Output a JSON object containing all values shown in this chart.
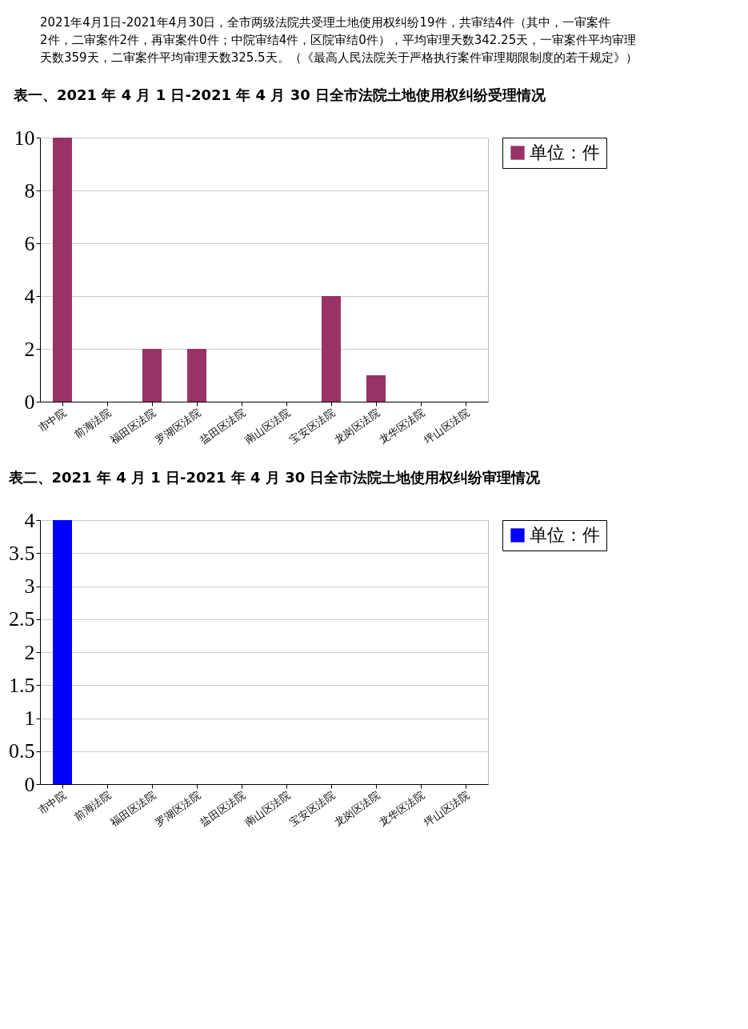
{
  "chart_data": [
    {
      "type": "bar",
      "title": "表一、2021 年 4 月 1 日-2021 年 4 月 30 日全市法院土地使用权纠纷受理情况",
      "annotations": [
        "2021年4月1日-2021年4月30日，全市两级法院共受理土地使用权纠纷19件，共审结4件（其中，一审案件2件，二审案件2件，再审案件0件；中院审结4件，区院审结0件），平均审理天数342.25天，一审案件平均审理天数359天，二审案件平均审理天数325.5天。（《最高人民法院关于严格执行案件审理期限制度的若干规定》）"
      ],
      "categories": [
        "市中院",
        "前海法院",
        "福田区法院",
        "罗湖区法院",
        "盐田区法院",
        "南山区法院",
        "宝安区法院",
        "龙岗区法院",
        "龙华区法院",
        "坪山区法院"
      ],
      "series": [
        {
          "name": "单位：件",
          "color": "#993366",
          "values": [
            10,
            0,
            2,
            2,
            0,
            0,
            4,
            1,
            0,
            0
          ]
        }
      ],
      "ylim": [
        0,
        10
      ],
      "yticks": [
        0,
        2,
        4,
        6,
        8,
        10
      ],
      "grid": "y",
      "legend": "right"
    },
    {
      "type": "bar",
      "title": "表二、2021 年 4 月 1 日-2021 年 4 月 30 日全市法院土地使用权纠纷审理情况",
      "categories": [
        "市中院",
        "前海法院",
        "福田区法院",
        "罗湖区法院",
        "盐田区法院",
        "南山区法院",
        "宝安区法院",
        "龙岗区法院",
        "龙华区法院",
        "坪山区法院"
      ],
      "series": [
        {
          "name": "单位：件",
          "color": "#0000ff",
          "values": [
            4,
            0,
            0,
            0,
            0,
            0,
            0,
            0,
            0,
            0
          ]
        }
      ],
      "ylim": [
        0,
        4
      ],
      "yticks": [
        0,
        0.5,
        1,
        1.5,
        2,
        2.5,
        3,
        3.5,
        4
      ],
      "grid": "y",
      "legend": "right"
    }
  ]
}
